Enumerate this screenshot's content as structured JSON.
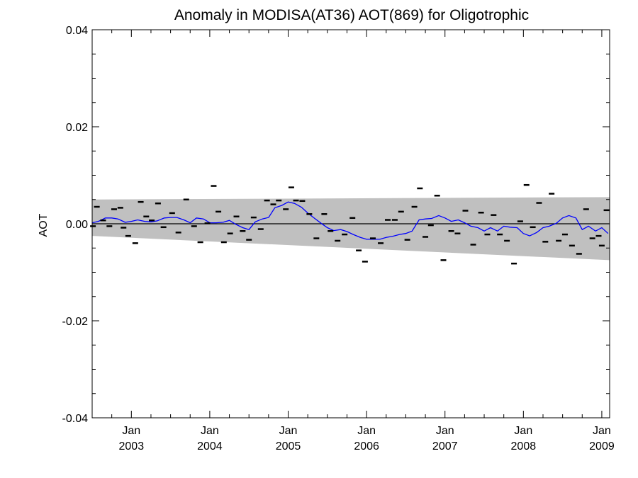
{
  "chart_data": {
    "type": "scatter",
    "title": "Anomaly in MODISA(AT36) AOT(869) for Oligotrophic",
    "xlabel": "",
    "ylabel": "AOT",
    "xlim": [
      2002.5,
      2009.1
    ],
    "ylim": [
      -0.04,
      0.04
    ],
    "grid": false,
    "y_ticks": [
      {
        "value": -0.04,
        "label": "-0.04"
      },
      {
        "value": -0.02,
        "label": "-0.02"
      },
      {
        "value": 0.0,
        "label": "0.00"
      },
      {
        "value": 0.02,
        "label": "0.02"
      },
      {
        "value": 0.04,
        "label": "0.04"
      }
    ],
    "x_ticks": [
      {
        "value": 2003,
        "month": "Jan",
        "year": "2003"
      },
      {
        "value": 2004,
        "month": "Jan",
        "year": "2004"
      },
      {
        "value": 2005,
        "month": "Jan",
        "year": "2005"
      },
      {
        "value": 2006,
        "month": "Jan",
        "year": "2006"
      },
      {
        "value": 2007,
        "month": "Jan",
        "year": "2007"
      },
      {
        "value": 2008,
        "month": "Jan",
        "year": "2008"
      },
      {
        "value": 2009,
        "month": "Jan",
        "year": "2009"
      }
    ],
    "band": {
      "x": [
        2002.5,
        2009.1
      ],
      "upper": [
        0.005,
        0.0055
      ],
      "lower": [
        -0.0025,
        -0.0075
      ],
      "color": "#c0c0c0"
    },
    "zero_line": {
      "value": 0.0,
      "color": "#000000"
    },
    "scatter": {
      "color": "#000000",
      "x": [
        2002.51,
        2002.56,
        2002.64,
        2002.72,
        2002.78,
        2002.86,
        2002.9,
        2002.96,
        2003.05,
        2003.12,
        2003.19,
        2003.26,
        2003.34,
        2003.41,
        2003.52,
        2003.6,
        2003.7,
        2003.8,
        2003.88,
        2003.97,
        2004.05,
        2004.11,
        2004.18,
        2004.26,
        2004.34,
        2004.42,
        2004.5,
        2004.56,
        2004.65,
        2004.73,
        2004.81,
        2004.88,
        2004.97,
        2005.04,
        2005.1,
        2005.18,
        2005.27,
        2005.36,
        2005.46,
        2005.54,
        2005.63,
        2005.72,
        2005.82,
        2005.9,
        2005.98,
        2006.08,
        2006.18,
        2006.27,
        2006.36,
        2006.44,
        2006.52,
        2006.61,
        2006.68,
        2006.75,
        2006.82,
        2006.9,
        2006.98,
        2007.08,
        2007.16,
        2007.26,
        2007.36,
        2007.46,
        2007.54,
        2007.62,
        2007.7,
        2007.79,
        2007.88,
        2007.96,
        2008.04,
        2008.12,
        2008.2,
        2008.28,
        2008.36,
        2008.45,
        2008.53,
        2008.62,
        2008.71,
        2008.8,
        2008.88,
        2008.96,
        2009.0,
        2009.06
      ],
      "y": [
        -0.0005,
        0.0035,
        0.0007,
        -0.0005,
        0.003,
        0.0033,
        -0.0008,
        -0.0025,
        -0.004,
        0.0045,
        0.0015,
        0.0007,
        0.0042,
        -0.0007,
        0.0022,
        -0.0018,
        0.005,
        -0.0005,
        -0.0038,
        0.0001,
        0.0078,
        0.0025,
        -0.0038,
        -0.002,
        0.0015,
        -0.0015,
        -0.0033,
        0.0013,
        -0.0011,
        0.0048,
        0.004,
        0.0048,
        0.003,
        0.0075,
        0.0048,
        0.0047,
        0.002,
        -0.003,
        0.002,
        -0.0015,
        -0.0035,
        -0.0022,
        0.0012,
        -0.0055,
        -0.0078,
        -0.003,
        -0.004,
        0.0008,
        0.0008,
        0.0025,
        -0.0033,
        0.0035,
        0.0073,
        -0.0027,
        -0.0003,
        0.0058,
        -0.0075,
        -0.0015,
        -0.002,
        0.0027,
        -0.0043,
        0.0023,
        -0.0022,
        0.0018,
        -0.0022,
        -0.0035,
        -0.0082,
        0.0005,
        0.008,
        -0.0007,
        0.0043,
        -0.0037,
        0.0062,
        -0.0035,
        -0.0022,
        -0.0045,
        -0.0062,
        0.003,
        -0.003,
        -0.0025,
        -0.0045,
        0.0028
      ]
    },
    "smoothed": {
      "color": "#0000ff",
      "x": [
        2002.5,
        2002.58,
        2002.67,
        2002.75,
        2002.83,
        2002.92,
        2003.0,
        2003.08,
        2003.17,
        2003.25,
        2003.33,
        2003.42,
        2003.5,
        2003.58,
        2003.67,
        2003.75,
        2003.83,
        2003.92,
        2004.0,
        2004.08,
        2004.17,
        2004.25,
        2004.33,
        2004.42,
        2004.5,
        2004.58,
        2004.67,
        2004.75,
        2004.83,
        2004.92,
        2005.0,
        2005.08,
        2005.17,
        2005.25,
        2005.33,
        2005.42,
        2005.5,
        2005.58,
        2005.67,
        2005.75,
        2005.83,
        2005.92,
        2006.0,
        2006.08,
        2006.17,
        2006.25,
        2006.33,
        2006.42,
        2006.5,
        2006.58,
        2006.67,
        2006.75,
        2006.83,
        2006.92,
        2007.0,
        2007.08,
        2007.17,
        2007.25,
        2007.33,
        2007.42,
        2007.5,
        2007.58,
        2007.67,
        2007.75,
        2007.83,
        2007.92,
        2008.0,
        2008.08,
        2008.17,
        2008.25,
        2008.33,
        2008.42,
        2008.5,
        2008.58,
        2008.67,
        2008.75,
        2008.83,
        2008.92,
        2009.0,
        2009.08
      ],
      "y": [
        0.0002,
        0.0005,
        0.0012,
        0.0012,
        0.001,
        0.0003,
        0.0005,
        0.0008,
        0.0005,
        0.0004,
        0.0006,
        0.0012,
        0.0013,
        0.0013,
        0.0008,
        0.0002,
        0.0012,
        0.001,
        0.0002,
        0.0002,
        0.0003,
        0.0007,
        -0.0001,
        -0.0008,
        -0.0012,
        0.0004,
        0.001,
        0.0013,
        0.0033,
        0.0038,
        0.0045,
        0.0042,
        0.0034,
        0.0022,
        0.0012,
        0.0001,
        -0.0008,
        -0.0014,
        -0.0012,
        -0.0016,
        -0.0022,
        -0.0028,
        -0.0032,
        -0.0032,
        -0.0032,
        -0.0028,
        -0.0026,
        -0.0022,
        -0.002,
        -0.0015,
        0.0008,
        0.001,
        0.0011,
        0.0017,
        0.0012,
        0.0005,
        0.0008,
        0.0002,
        -0.0005,
        -0.0008,
        -0.0015,
        -0.0008,
        -0.0015,
        -0.0005,
        -0.0007,
        -0.0008,
        -0.002,
        -0.0025,
        -0.0018,
        -0.0008,
        -0.0005,
        0.0001,
        0.0012,
        0.0017,
        0.0012,
        -0.0012,
        -0.0005,
        -0.0015,
        -0.0008,
        -0.002
      ]
    }
  }
}
